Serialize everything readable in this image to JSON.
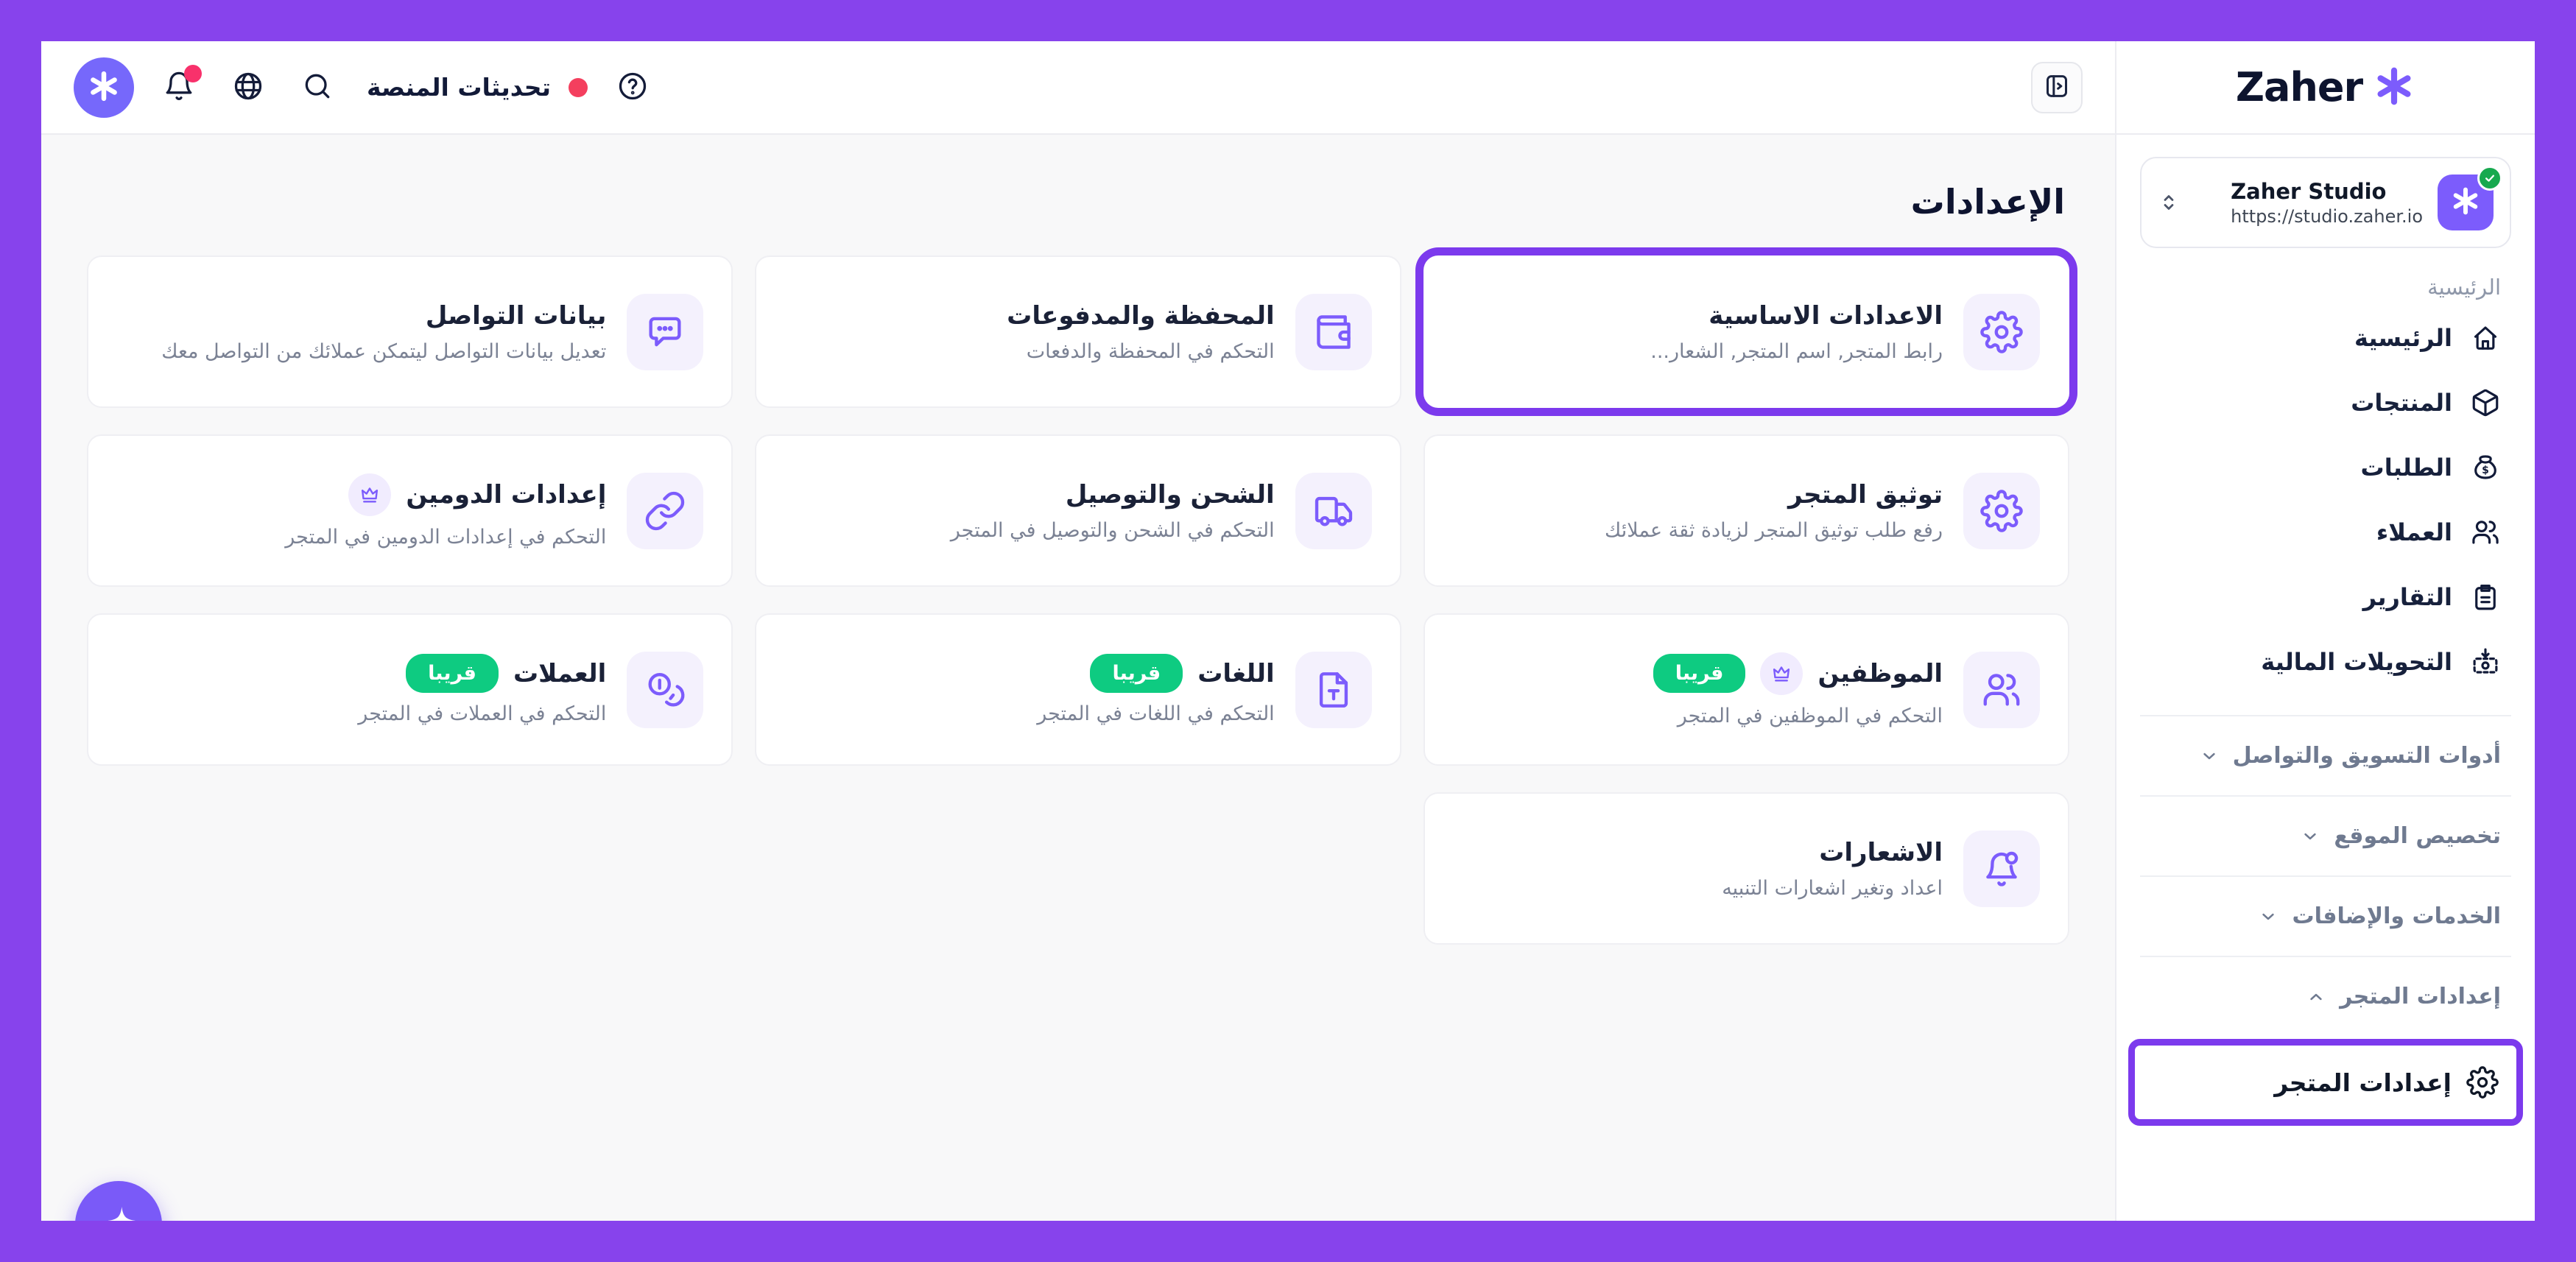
{
  "brand": "Zaher",
  "topbar": {
    "updates_label": "تحديثات المنصة"
  },
  "sidebar": {
    "store": {
      "name": "Zaher Studio",
      "url": "https://studio.zaher.io"
    },
    "section_label": "الرئيسية",
    "nav": [
      {
        "id": "home",
        "label": "الرئيسية",
        "icon": "home"
      },
      {
        "id": "products",
        "label": "المنتجات",
        "icon": "package"
      },
      {
        "id": "orders",
        "label": "الطلبات",
        "icon": "money-bag"
      },
      {
        "id": "customers",
        "label": "العملاء",
        "icon": "users"
      },
      {
        "id": "reports",
        "label": "التقارير",
        "icon": "clipboard"
      },
      {
        "id": "transfers",
        "label": "التحويلات المالية",
        "icon": "cash-out"
      }
    ],
    "groups": [
      {
        "id": "marketing",
        "label": "أدوات التسويق والتواصل",
        "expanded": false
      },
      {
        "id": "customize-site",
        "label": "تخصيص الموقع",
        "expanded": false
      },
      {
        "id": "services",
        "label": "الخدمات والإضافات",
        "expanded": false
      },
      {
        "id": "store-settings",
        "label": "إعدادات المتجر",
        "expanded": true
      }
    ],
    "active_item": {
      "label": "إعدادات المتجر",
      "icon": "gear"
    }
  },
  "main": {
    "title": "الإعدادات",
    "cards": [
      {
        "id": "basic-settings",
        "title": "الاعدادات الاساسية",
        "subtitle": "رابط المتجر, اسم المتجر, الشعار...",
        "icon": "gear",
        "highlighted": true
      },
      {
        "id": "wallet-payments",
        "title": "المحفظة والمدفوعات",
        "subtitle": "التحكم في المحفظة والدفعات",
        "icon": "wallet"
      },
      {
        "id": "contact-info",
        "title": "بيانات التواصل",
        "subtitle": "تعديل بيانات التواصل ليتمكن عملائك من التواصل معك",
        "icon": "chat"
      },
      {
        "id": "store-verification",
        "title": "توثيق المتجر",
        "subtitle": "رفع طلب توثيق المتجر لزيادة ثقة عملائك",
        "icon": "gear"
      },
      {
        "id": "shipping-delivery",
        "title": "الشحن والتوصيل",
        "subtitle": "التحكم في الشحن والتوصيل في المتجر",
        "icon": "truck"
      },
      {
        "id": "domain-settings",
        "title": "إعدادات الدومين",
        "subtitle": "التحكم في إعدادات الدومين في المتجر",
        "icon": "link",
        "crown": true
      },
      {
        "id": "staff",
        "title": "الموظفين",
        "subtitle": "التحكم في الموظفين في المتجر",
        "icon": "users",
        "crown": true,
        "badge": "قريبا"
      },
      {
        "id": "languages",
        "title": "اللغات",
        "subtitle": "التحكم في اللغات في المتجر",
        "icon": "doc-text",
        "badge": "قريبا"
      },
      {
        "id": "currencies",
        "title": "العملات",
        "subtitle": "التحكم في العملات في المتجر",
        "icon": "coins",
        "badge": "قريبا"
      },
      {
        "id": "notifications",
        "title": "الاشعارات",
        "subtitle": "اعداد وتغير اشعارات التنبيه",
        "icon": "bell-alert"
      }
    ]
  },
  "colors": {
    "frame": "#8743EC",
    "highlight": "#7C3AED",
    "accent": "#7C5CFC",
    "green": "#0ECB81",
    "red": "#F43F5E",
    "dark": "#121A38",
    "gray": "#7B8294"
  }
}
